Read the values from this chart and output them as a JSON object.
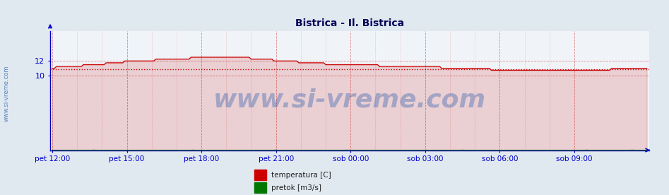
{
  "title": "Bistrica - Il. Bistrica",
  "title_color": "#000055",
  "title_fontsize": 10,
  "bg_color": "#e0e8f0",
  "plot_bg_color": "#f0f4f8",
  "x_tick_labels": [
    "pet 12:00",
    "pet 15:00",
    "pet 18:00",
    "pet 21:00",
    "sob 00:00",
    "sob 03:00",
    "sob 06:00",
    "sob 09:00"
  ],
  "x_tick_positions": [
    0,
    36,
    72,
    108,
    144,
    180,
    216,
    252
  ],
  "n_points": 288,
  "temp_color": "#cc0000",
  "flow_color": "#007700",
  "avg_color": "#cc0000",
  "axis_color": "#0000cc",
  "grid_color_major": "#dd8888",
  "grid_color_minor": "#eebbbb",
  "tick_label_color": "#0000aa",
  "watermark": "www.si-vreme.com",
  "watermark_color": "#2255aa",
  "watermark_alpha": 0.35,
  "watermark_fontsize": 26,
  "sidebar_text": "www.si-vreme.com",
  "sidebar_color": "#2255aa",
  "sidebar_alpha": 0.7,
  "ylim_min": 0,
  "ylim_max": 16,
  "ytick_vals": [
    10,
    12
  ],
  "temp_avg": 10.85,
  "legend_items": [
    {
      "label": "temperatura [C]",
      "color": "#cc0000"
    },
    {
      "label": "pretok [m3/s]",
      "color": "#007700"
    }
  ]
}
